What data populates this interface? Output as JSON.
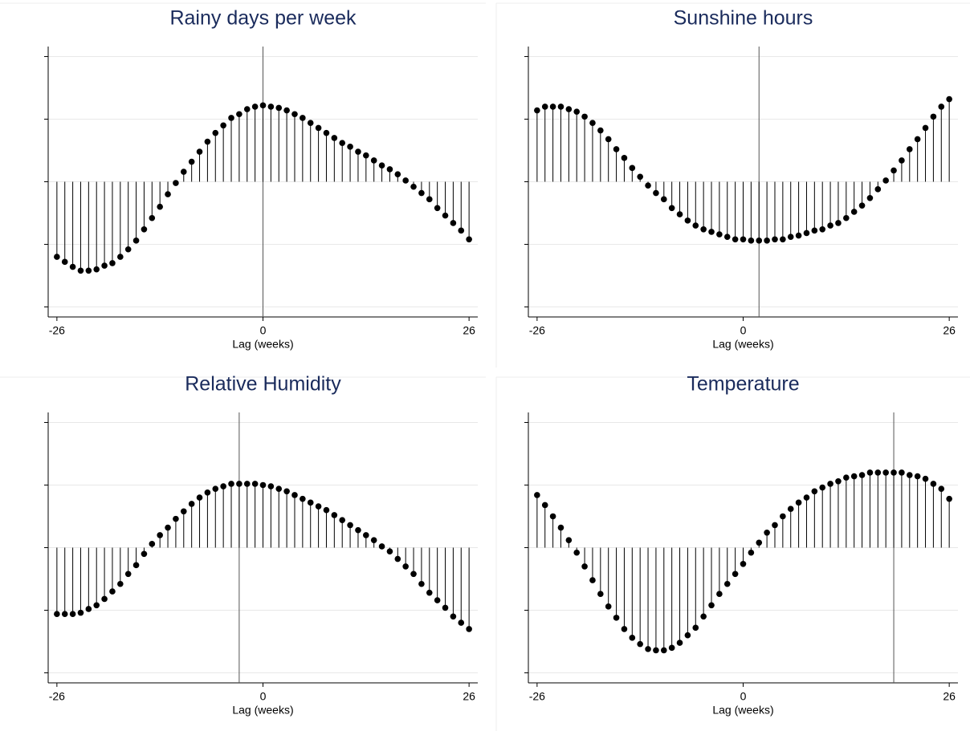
{
  "chart_data": [
    {
      "type": "stem",
      "title": "Rainy days per week",
      "x_label": "Lag (weeks)",
      "x": [
        -26,
        -25,
        -24,
        -23,
        -22,
        -21,
        -20,
        -19,
        -18,
        -17,
        -16,
        -15,
        -14,
        -13,
        -12,
        -11,
        -10,
        -9,
        -8,
        -7,
        -6,
        -5,
        -4,
        -3,
        -2,
        -1,
        0,
        1,
        2,
        3,
        4,
        5,
        6,
        7,
        8,
        9,
        10,
        11,
        12,
        13,
        14,
        15,
        16,
        17,
        18,
        19,
        20,
        21,
        22,
        23,
        24,
        25,
        26
      ],
      "values": [
        -0.6,
        -0.64,
        -0.68,
        -0.71,
        -0.71,
        -0.7,
        -0.67,
        -0.65,
        -0.6,
        -0.54,
        -0.47,
        -0.38,
        -0.29,
        -0.2,
        -0.1,
        -0.01,
        0.08,
        0.16,
        0.24,
        0.32,
        0.39,
        0.45,
        0.51,
        0.54,
        0.58,
        0.6,
        0.61,
        0.6,
        0.59,
        0.57,
        0.54,
        0.51,
        0.47,
        0.43,
        0.39,
        0.35,
        0.31,
        0.28,
        0.24,
        0.21,
        0.17,
        0.13,
        0.1,
        0.06,
        0.01,
        -0.04,
        -0.09,
        -0.14,
        -0.21,
        -0.27,
        -0.33,
        -0.39,
        -0.46
      ],
      "reference_line": 0,
      "color": "#000000",
      "xlim": [
        -27.1,
        27.1
      ],
      "xticks": [
        -26,
        0,
        26
      ],
      "ylim": [
        -1.08,
        1.08
      ],
      "yticks": [
        -1,
        -0.5,
        0,
        0.5,
        1
      ],
      "grid": true
    },
    {
      "type": "stem",
      "title": "Sunshine hours",
      "x_label": "Lag (weeks)",
      "x": [
        -26,
        -25,
        -24,
        -23,
        -22,
        -21,
        -20,
        -19,
        -18,
        -17,
        -16,
        -15,
        -14,
        -13,
        -12,
        -11,
        -10,
        -9,
        -8,
        -7,
        -6,
        -5,
        -4,
        -3,
        -2,
        -1,
        0,
        1,
        2,
        3,
        4,
        5,
        6,
        7,
        8,
        9,
        10,
        11,
        12,
        13,
        14,
        15,
        16,
        17,
        18,
        19,
        20,
        21,
        22,
        23,
        24,
        25,
        26
      ],
      "values": [
        0.57,
        0.6,
        0.6,
        0.6,
        0.58,
        0.56,
        0.52,
        0.47,
        0.41,
        0.34,
        0.26,
        0.19,
        0.11,
        0.04,
        -0.03,
        -0.09,
        -0.14,
        -0.21,
        -0.26,
        -0.31,
        -0.35,
        -0.38,
        -0.4,
        -0.42,
        -0.44,
        -0.46,
        -0.46,
        -0.47,
        -0.47,
        -0.47,
        -0.46,
        -0.46,
        -0.44,
        -0.43,
        -0.41,
        -0.39,
        -0.38,
        -0.35,
        -0.33,
        -0.29,
        -0.24,
        -0.19,
        -0.13,
        -0.06,
        0.01,
        0.09,
        0.17,
        0.26,
        0.34,
        0.43,
        0.52,
        0.6,
        0.66
      ],
      "reference_line": 2,
      "color": "#000000",
      "xlim": [
        -27.1,
        27.1
      ],
      "xticks": [
        -26,
        0,
        26
      ],
      "ylim": [
        -1.08,
        1.08
      ],
      "yticks": [
        -1,
        -0.5,
        0,
        0.5,
        1
      ],
      "grid": true
    },
    {
      "type": "stem",
      "title": "Relative Humidity",
      "x_label": "Lag (weeks)",
      "x": [
        -26,
        -25,
        -24,
        -23,
        -22,
        -21,
        -20,
        -19,
        -18,
        -17,
        -16,
        -15,
        -14,
        -13,
        -12,
        -11,
        -10,
        -9,
        -8,
        -7,
        -6,
        -5,
        -4,
        -3,
        -2,
        -1,
        0,
        1,
        2,
        3,
        4,
        5,
        6,
        7,
        8,
        9,
        10,
        11,
        12,
        13,
        14,
        15,
        16,
        17,
        18,
        19,
        20,
        21,
        22,
        23,
        24,
        25,
        26
      ],
      "values": [
        -0.53,
        -0.53,
        -0.53,
        -0.52,
        -0.49,
        -0.46,
        -0.41,
        -0.35,
        -0.29,
        -0.21,
        -0.14,
        -0.05,
        0.03,
        0.1,
        0.16,
        0.23,
        0.29,
        0.35,
        0.4,
        0.44,
        0.47,
        0.49,
        0.51,
        0.51,
        0.51,
        0.51,
        0.5,
        0.49,
        0.47,
        0.45,
        0.42,
        0.39,
        0.36,
        0.33,
        0.3,
        0.26,
        0.22,
        0.18,
        0.14,
        0.1,
        0.06,
        0.01,
        -0.03,
        -0.09,
        -0.15,
        -0.21,
        -0.29,
        -0.36,
        -0.42,
        -0.48,
        -0.55,
        -0.6,
        -0.65
      ],
      "reference_line": -3,
      "color": "#000000",
      "xlim": [
        -27.1,
        27.1
      ],
      "xticks": [
        -26,
        0,
        26
      ],
      "ylim": [
        -1.08,
        1.08
      ],
      "yticks": [
        -1,
        -0.5,
        0,
        0.5,
        1
      ],
      "grid": true
    },
    {
      "type": "stem",
      "title": "Temperature",
      "x_label": "Lag (weeks)",
      "x": [
        -26,
        -25,
        -24,
        -23,
        -22,
        -21,
        -20,
        -19,
        -18,
        -17,
        -16,
        -15,
        -14,
        -13,
        -12,
        -11,
        -10,
        -9,
        -8,
        -7,
        -6,
        -5,
        -4,
        -3,
        -2,
        -1,
        0,
        1,
        2,
        3,
        4,
        5,
        6,
        7,
        8,
        9,
        10,
        11,
        12,
        13,
        14,
        15,
        16,
        17,
        18,
        19,
        20,
        21,
        22,
        23,
        24,
        25,
        26
      ],
      "values": [
        0.42,
        0.34,
        0.25,
        0.16,
        0.06,
        -0.04,
        -0.15,
        -0.26,
        -0.37,
        -0.47,
        -0.56,
        -0.65,
        -0.72,
        -0.77,
        -0.81,
        -0.82,
        -0.82,
        -0.8,
        -0.76,
        -0.7,
        -0.64,
        -0.55,
        -0.46,
        -0.37,
        -0.29,
        -0.21,
        -0.13,
        -0.04,
        0.04,
        0.12,
        0.18,
        0.25,
        0.31,
        0.36,
        0.4,
        0.45,
        0.48,
        0.51,
        0.53,
        0.56,
        0.57,
        0.58,
        0.6,
        0.6,
        0.6,
        0.6,
        0.6,
        0.58,
        0.57,
        0.55,
        0.51,
        0.47,
        0.39
      ],
      "reference_line": 19,
      "color": "#000000",
      "xlim": [
        -27.1,
        27.1
      ],
      "xticks": [
        -26,
        0,
        26
      ],
      "ylim": [
        -1.08,
        1.08
      ],
      "yticks": [
        -1,
        -0.5,
        0,
        0.5,
        1
      ],
      "grid": true
    }
  ]
}
